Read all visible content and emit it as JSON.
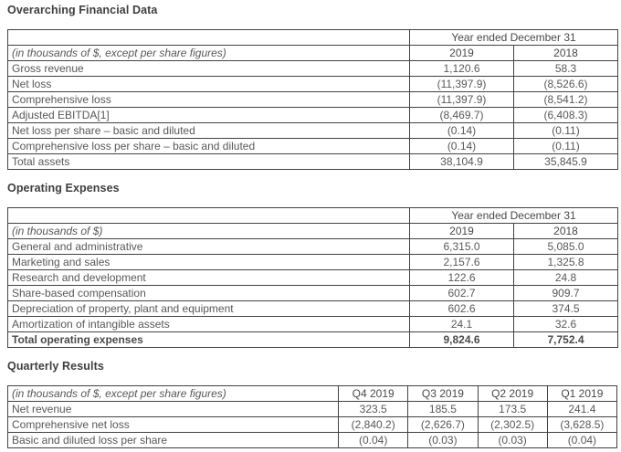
{
  "page": {
    "background": "#ffffff",
    "text_color": "#58585a",
    "heading_color": "#3e3e40",
    "border_color": "#424242"
  },
  "sections": [
    {
      "heading": "Overarching Financial Data",
      "table": {
        "span_header": "Year ended December 31",
        "row_label_header": "(in thousands of $, except per share figures)",
        "columns": [
          "2019",
          "2018"
        ],
        "rows": [
          {
            "label": "Gross revenue",
            "values": [
              "1,120.6",
              "58.3"
            ],
            "bold": false
          },
          {
            "label": "Net loss",
            "values": [
              "(11,397.9)",
              "(8,526.6)"
            ],
            "bold": false
          },
          {
            "label": "Comprehensive loss",
            "values": [
              "(11,397.9)",
              "(8,541.2)"
            ],
            "bold": false
          },
          {
            "label": "Adjusted EBITDA[1]",
            "values": [
              "(8,469.7)",
              "(6,408.3)"
            ],
            "bold": false
          },
          {
            "label": "Net loss per share – basic and diluted",
            "values": [
              "(0.14)",
              "(0.11)"
            ],
            "bold": false
          },
          {
            "label": "Comprehensive loss per share – basic and diluted",
            "values": [
              "(0.14)",
              "(0.11)"
            ],
            "bold": false
          },
          {
            "label": "Total assets",
            "values": [
              "38,104.9",
              "35,845.9"
            ],
            "bold": false
          }
        ]
      }
    },
    {
      "heading": "Operating Expenses",
      "table": {
        "span_header": "Year ended December 31",
        "row_label_header": "(in thousands of $)",
        "columns": [
          "2019",
          "2018"
        ],
        "rows": [
          {
            "label": "General and administrative",
            "values": [
              "6,315.0",
              "5,085.0"
            ],
            "bold": false
          },
          {
            "label": "Marketing and sales",
            "values": [
              "2,157.6",
              "1,325.8"
            ],
            "bold": false
          },
          {
            "label": "Research and development",
            "values": [
              "122.6",
              "24.8"
            ],
            "bold": false
          },
          {
            "label": "Share-based compensation",
            "values": [
              "602.7",
              "909.7"
            ],
            "bold": false
          },
          {
            "label": "Depreciation of property, plant and equipment",
            "values": [
              "602.6",
              "374.5"
            ],
            "bold": false
          },
          {
            "label": "Amortization of intangible assets",
            "values": [
              "24.1",
              "32.6"
            ],
            "bold": false
          },
          {
            "label": "Total operating expenses",
            "values": [
              "9,824.6",
              "7,752.4"
            ],
            "bold": true
          }
        ]
      }
    },
    {
      "heading": "Quarterly Results",
      "table": {
        "span_header": null,
        "row_label_header": "(in thousands of $, except per share figures)",
        "columns": [
          "Q4 2019",
          "Q3 2019",
          "Q2 2019",
          "Q1 2019"
        ],
        "rows": [
          {
            "label": "Net revenue",
            "values": [
              "323.5",
              "185.5",
              "173.5",
              "241.4"
            ],
            "bold": false
          },
          {
            "label": "Comprehensive net loss",
            "values": [
              "(2,840.2)",
              "(2,626.7)",
              "(2,302.5)",
              "(3,628.5)"
            ],
            "bold": false
          },
          {
            "label": "Basic and diluted loss per share",
            "values": [
              "(0.04)",
              "(0.03)",
              "(0.03)",
              "(0.04)"
            ],
            "bold": false
          }
        ]
      }
    }
  ]
}
